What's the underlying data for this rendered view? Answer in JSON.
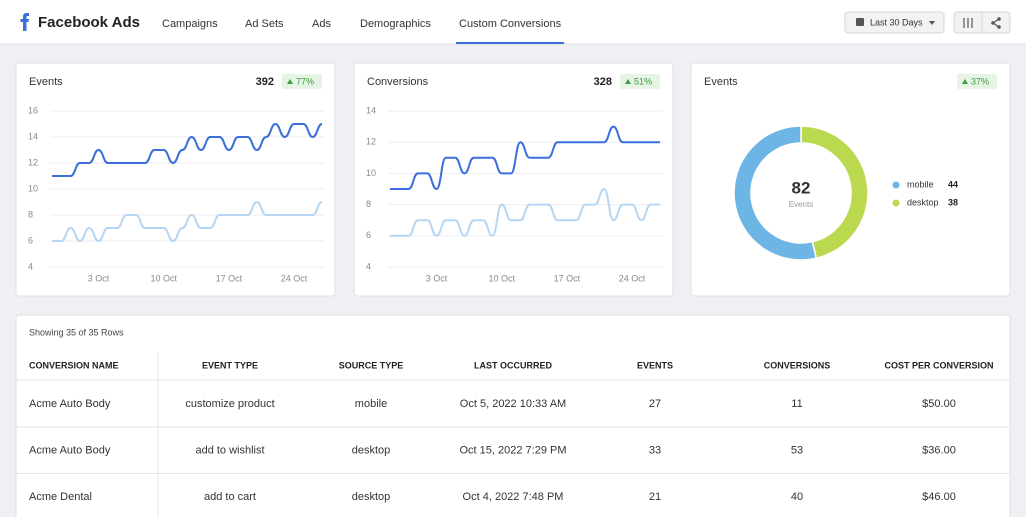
{
  "header": {
    "title": "Facebook Ads",
    "tabs": [
      "Campaigns",
      "Ad Sets",
      "Ads",
      "Demographics",
      "Custom Conversions"
    ],
    "active_tab": 4,
    "date_range": "Last 30 Days"
  },
  "cards": [
    {
      "title": "Events",
      "total": "392",
      "change": "77%",
      "chart": {
        "type": "line",
        "categories": [
          null,
          null,
          null,
          null,
          null,
          "3 Oct",
          null,
          null,
          null,
          null,
          null,
          null,
          "10 Oct",
          null,
          null,
          null,
          null,
          null,
          null,
          "17 Oct",
          null,
          null,
          null,
          null,
          null,
          null,
          "24 Oct",
          null,
          null,
          null
        ],
        "ylim": [
          4,
          16
        ],
        "yticks": [
          4,
          6,
          8,
          10,
          12,
          14,
          16
        ],
        "grid": true,
        "series": [
          {
            "color": "#3b6fdb",
            "values": [
              11,
              11,
              11,
              12,
              12,
              13,
              12,
              12,
              12,
              12,
              12,
              13,
              13,
              12,
              13,
              14,
              13,
              14,
              14,
              13,
              14,
              14,
              13,
              14,
              15,
              14,
              15,
              15,
              14,
              15
            ]
          },
          {
            "color": "#b6d6f4",
            "values": [
              6,
              6,
              7,
              6,
              7,
              6,
              7,
              7,
              8,
              8,
              7,
              7,
              7,
              6,
              7,
              8,
              7,
              7,
              8,
              8,
              8,
              8,
              9,
              8,
              8,
              8,
              8,
              8,
              8,
              9
            ]
          }
        ]
      }
    },
    {
      "title": "Conversions",
      "total": "328",
      "change": "51%",
      "chart": {
        "type": "line",
        "categories": [
          null,
          null,
          null,
          null,
          null,
          "3 Oct",
          null,
          null,
          null,
          null,
          null,
          null,
          "10 Oct",
          null,
          null,
          null,
          null,
          null,
          null,
          "17 Oct",
          null,
          null,
          null,
          null,
          null,
          null,
          "24 Oct",
          null,
          null,
          null
        ],
        "ylim": [
          4,
          14
        ],
        "yticks": [
          4,
          6,
          8,
          10,
          12,
          14
        ],
        "grid": true,
        "series": [
          {
            "color": "#3b6fdb",
            "values": [
              9,
              9,
              9,
              10,
              10,
              9,
              11,
              11,
              10,
              11,
              11,
              11,
              10,
              10,
              12,
              11,
              11,
              11,
              12,
              12,
              12,
              12,
              12,
              12,
              13,
              12,
              12,
              12,
              12,
              12
            ]
          },
          {
            "color": "#b6d6f4",
            "values": [
              6,
              6,
              6,
              7,
              7,
              6,
              7,
              7,
              6,
              7,
              7,
              6,
              8,
              7,
              7,
              8,
              8,
              8,
              7,
              7,
              7,
              8,
              8,
              9,
              7,
              8,
              8,
              7,
              8,
              8
            ]
          }
        ]
      }
    },
    {
      "title": "Events",
      "change": "37%",
      "chart": {
        "type": "donut",
        "total": "82",
        "total_label": "Events",
        "categories": [
          "mobile",
          "desktop"
        ],
        "values": [
          44,
          38
        ],
        "colors": [
          "#6db5e5",
          "#bbd94f"
        ]
      }
    }
  ],
  "table": {
    "caption": "Showing 35 of 35 Rows",
    "columns": [
      "CONVERSION NAME",
      "EVENT TYPE",
      "SOURCE TYPE",
      "LAST OCCURRED",
      "EVENTS",
      "CONVERSIONS",
      "COST PER CONVERSION"
    ],
    "rows": [
      [
        "Acme Auto Body",
        "customize product",
        "mobile",
        "Oct 5, 2022 10:33 AM",
        "27",
        "11",
        "$50.00"
      ],
      [
        "Acme Auto Body",
        "add to wishlist",
        "desktop",
        "Oct 15, 2022 7:29 PM",
        "33",
        "53",
        "$36.00"
      ],
      [
        "Acme Dental",
        "add to cart",
        "desktop",
        "Oct 4, 2022 7:48 PM",
        "21",
        "40",
        "$46.00"
      ]
    ]
  }
}
